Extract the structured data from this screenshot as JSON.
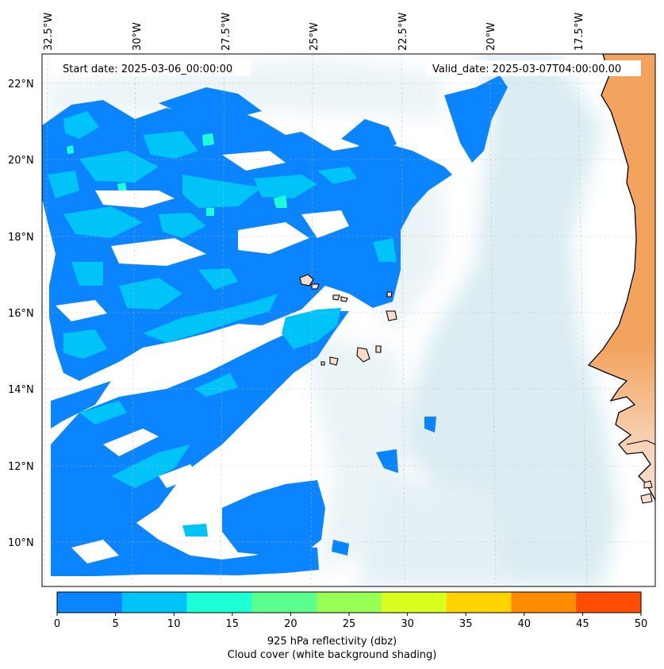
{
  "header": {
    "start_date": "Start date: 2025-03-06_00:00:00",
    "valid_date": "Valid_date: 2025-03-07T04:00:00.00"
  },
  "axes": {
    "lon_labels": [
      "32.5°W",
      "30°W",
      "27.5°W",
      "25°W",
      "22.5°W",
      "20°W",
      "17.5°W"
    ],
    "lat_labels": [
      "22°N",
      "20°N",
      "18°N",
      "16°N",
      "14°N",
      "12°N",
      "10°N"
    ]
  },
  "colorbar": {
    "ticks": [
      "0",
      "5",
      "10",
      "15",
      "20",
      "25",
      "30",
      "35",
      "40",
      "45",
      "50"
    ],
    "colors": [
      "#0a84ff",
      "#00c3f7",
      "#1dffd6",
      "#5bff8c",
      "#97ff55",
      "#d8ff1f",
      "#ffd400",
      "#ff8c00",
      "#ff4d00"
    ],
    "label_line1": "925 hPa reflectivity (dbz)",
    "label_line2": "Cloud cover (white background shading)"
  },
  "colors": {
    "land": "#f2a35e",
    "island": "#f8dcc8",
    "cloud": "#cfe6ee"
  }
}
